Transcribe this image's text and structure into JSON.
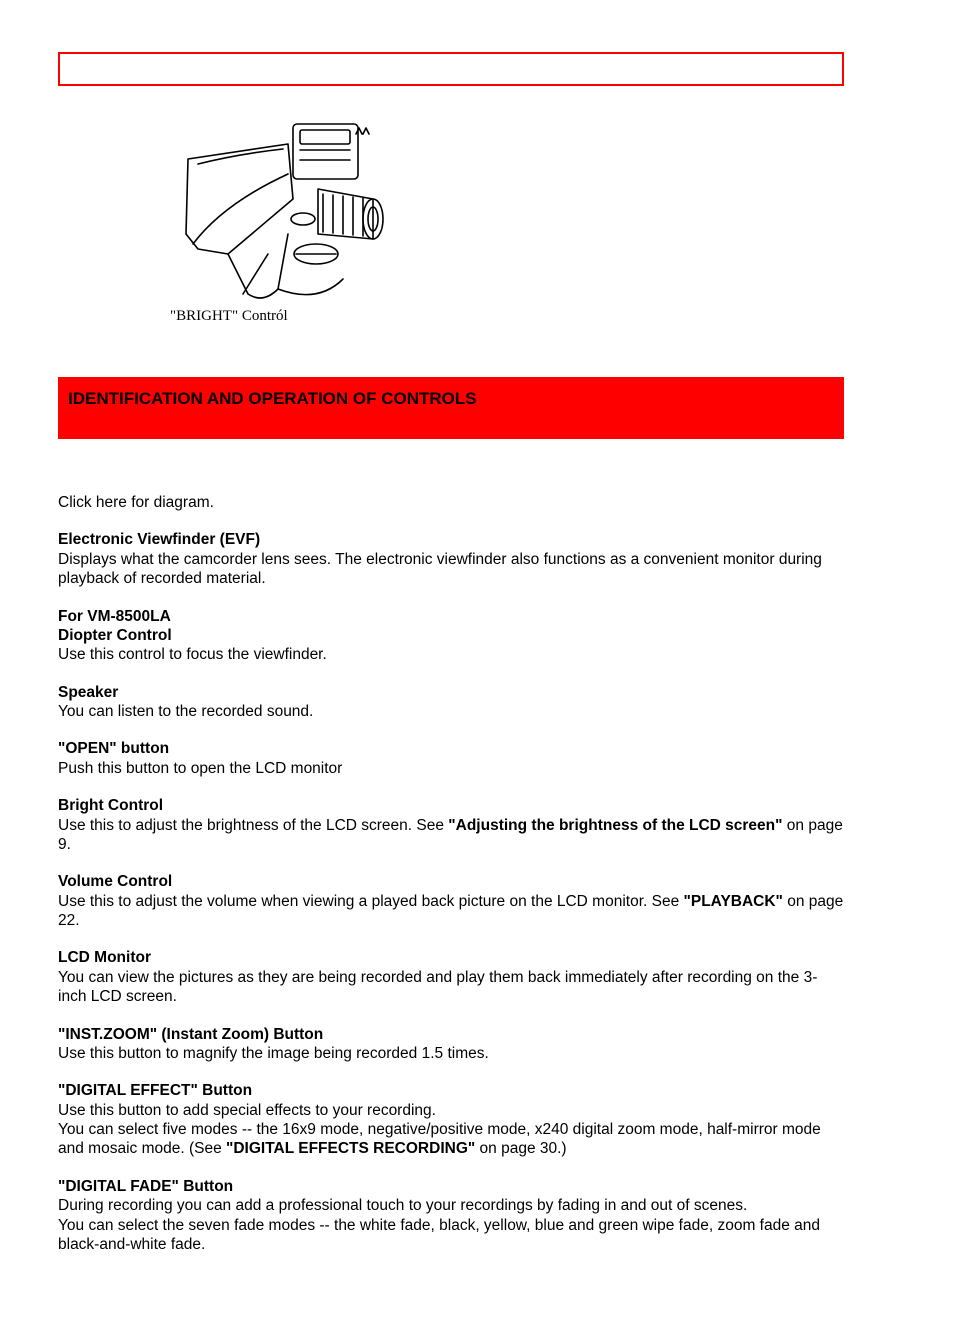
{
  "colors": {
    "accent": "#ff0000",
    "text": "#000000",
    "background": "#ffffff"
  },
  "typography": {
    "body_font": "Arial",
    "body_size_pt": 12,
    "caption_font": "Georgia"
  },
  "figure": {
    "caption": "\"BRIGHT\" Contról",
    "alt": "camcorder-line-drawing"
  },
  "section_header": "IDENTIFICATION AND OPERATION OF CONTROLS",
  "intro_line": "Click here for diagram.",
  "items": [
    {
      "heading": "Electronic Viewfinder (EVF)",
      "lines": [
        "Displays what the camcorder lens sees. The electronic viewfinder also functions as a convenient monitor during playback of recorded material."
      ]
    },
    {
      "heading": "For VM-8500LA",
      "subheading": "Diopter Control",
      "lines": [
        "Use this control to focus the viewfinder."
      ]
    },
    {
      "heading": "Speaker",
      "lines": [
        "You can listen to the recorded sound."
      ]
    },
    {
      "heading": "\"OPEN\" button",
      "lines": [
        "Push this button to open the LCD monitor"
      ]
    },
    {
      "heading": "Bright Control",
      "lines_rich": [
        {
          "pre": "Use this to adjust the brightness of the LCD screen.  See ",
          "bold": "\"Adjusting the brightness of the LCD screen\"",
          "post": " on page 9."
        }
      ]
    },
    {
      "heading": "Volume Control",
      "lines_rich": [
        {
          "pre": "Use this to adjust the volume when viewing a played back picture on the LCD monitor.  See ",
          "bold": "\"PLAYBACK\"",
          "post": " on page 22."
        }
      ]
    },
    {
      "heading": "LCD Monitor",
      "lines": [
        "You can view the pictures as they are being recorded and play them back immediately after recording on the 3-inch LCD screen."
      ]
    },
    {
      "heading": "\"INST.ZOOM\" (Instant Zoom) Button",
      "lines": [
        "Use this button to magnify the image being recorded 1.5 times."
      ]
    },
    {
      "heading": "\"DIGITAL EFFECT\" Button",
      "lines": [
        "Use this button to add special effects to your recording."
      ],
      "lines_rich": [
        {
          "pre": "You can select five modes -- the 16x9 mode, negative/positive mode, x240 digital zoom mode, half-mirror mode and mosaic mode.  (See ",
          "bold": "\"DIGITAL EFFECTS RECORDING\"",
          "post": " on page 30.)"
        }
      ]
    },
    {
      "heading": "\"DIGITAL FADE\" Button",
      "lines": [
        "During recording you can add a professional touch to your recordings by fading in and out of scenes.",
        "You can select the seven fade modes -- the white fade, black, yellow, blue and green wipe fade, zoom fade and black-and-white fade."
      ]
    }
  ]
}
